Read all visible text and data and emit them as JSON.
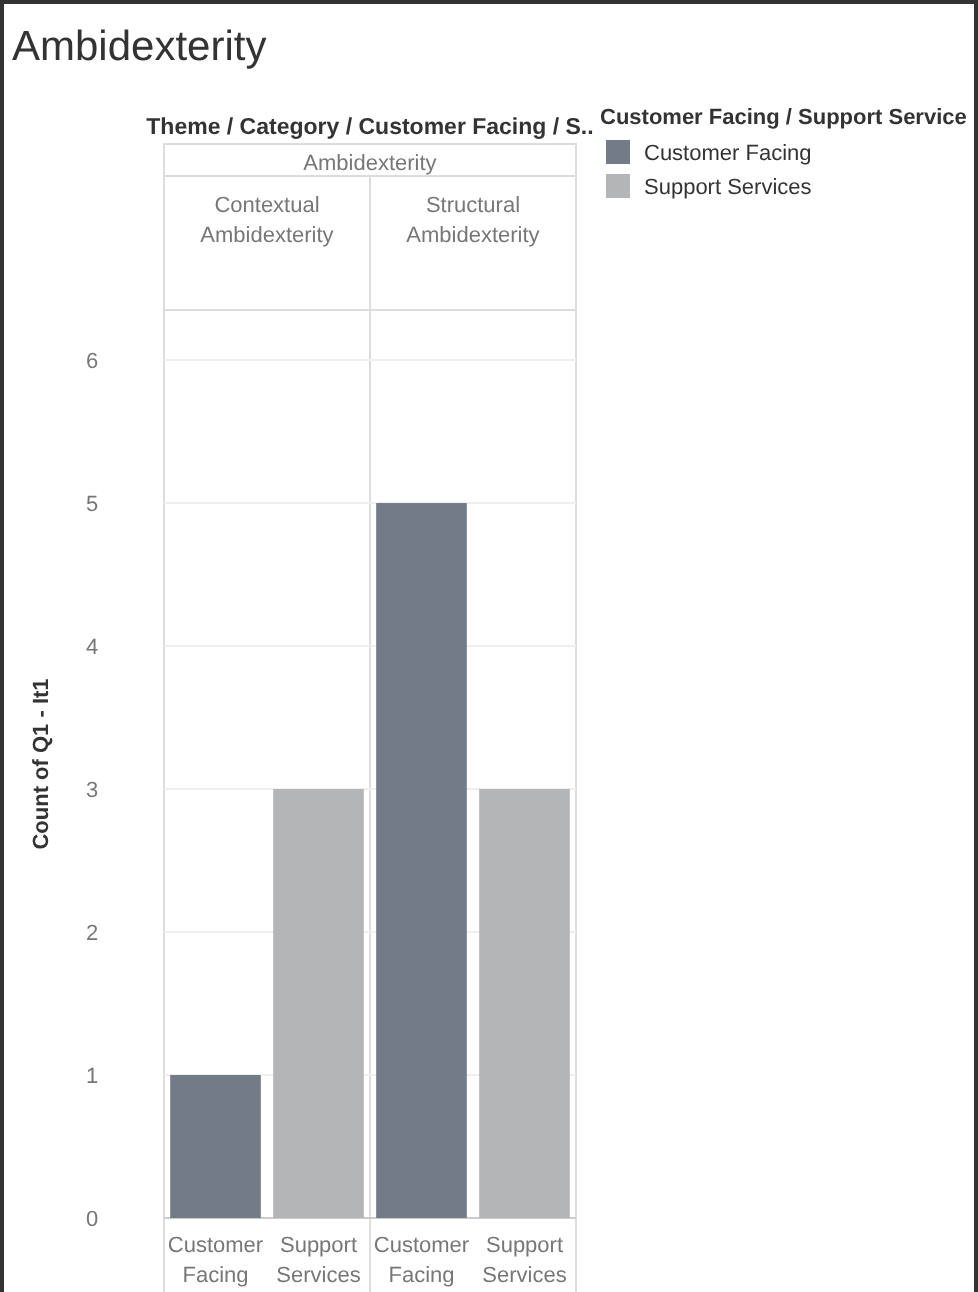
{
  "chart_data": {
    "type": "bar",
    "title": "Ambidexterity",
    "ylabel": "Count of Q1 - It1",
    "legend_title": "Customer Facing / Support Service",
    "categories": [
      "Customer Facing",
      "Support Services",
      "Customer Facing",
      "Support Services"
    ],
    "series": [
      {
        "name": "Customer Facing",
        "color": "#737b87",
        "values": [
          1,
          null,
          5,
          null
        ]
      },
      {
        "name": "Support Services",
        "color": "#b3b5b7",
        "values": [
          null,
          3,
          null,
          3
        ]
      }
    ],
    "annotations": [
      "Theme / Category / Customer Facing / S..",
      "Ambidexterity",
      "Contextual Ambidexterity",
      "Structural Ambidexterity"
    ],
    "ylim": [
      0,
      6.35
    ],
    "yticks": [
      0,
      1,
      2,
      3,
      4,
      5,
      6
    ],
    "grid": "y",
    "legend": "top right"
  }
}
